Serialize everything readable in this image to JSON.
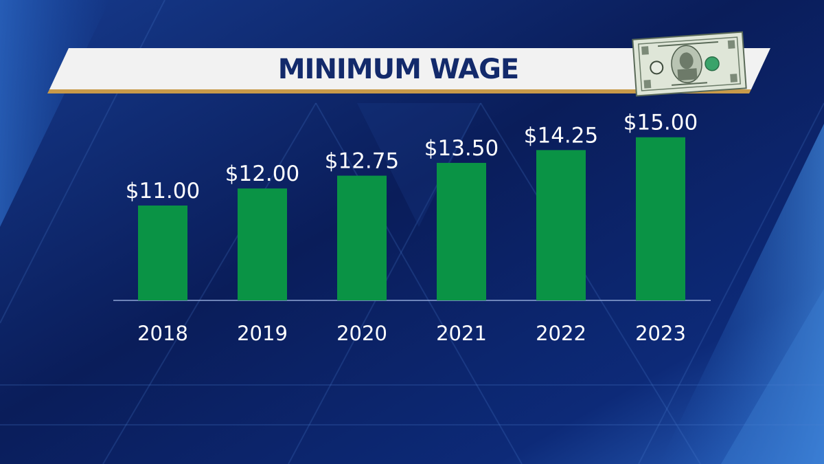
{
  "banner": {
    "title": "MINIMUM WAGE",
    "image": "dollar-bill-icon"
  },
  "colors": {
    "background": "#0b1f5c",
    "bar": "#0a9345",
    "banner": "#f2f2f2",
    "banner_text": "#132a6b",
    "banner_stripe": "#c89a4a"
  },
  "chart_data": {
    "type": "bar",
    "categories": [
      "2018",
      "2019",
      "2020",
      "2021",
      "2022",
      "2023"
    ],
    "values": [
      11.0,
      12.0,
      12.75,
      13.5,
      14.25,
      15.0
    ],
    "value_labels": [
      "$11.00",
      "$12.00",
      "$12.75",
      "$13.50",
      "$14.25",
      "$15.00"
    ],
    "title": "",
    "xlabel": "",
    "ylabel": "",
    "grid": false,
    "legend": "none"
  }
}
